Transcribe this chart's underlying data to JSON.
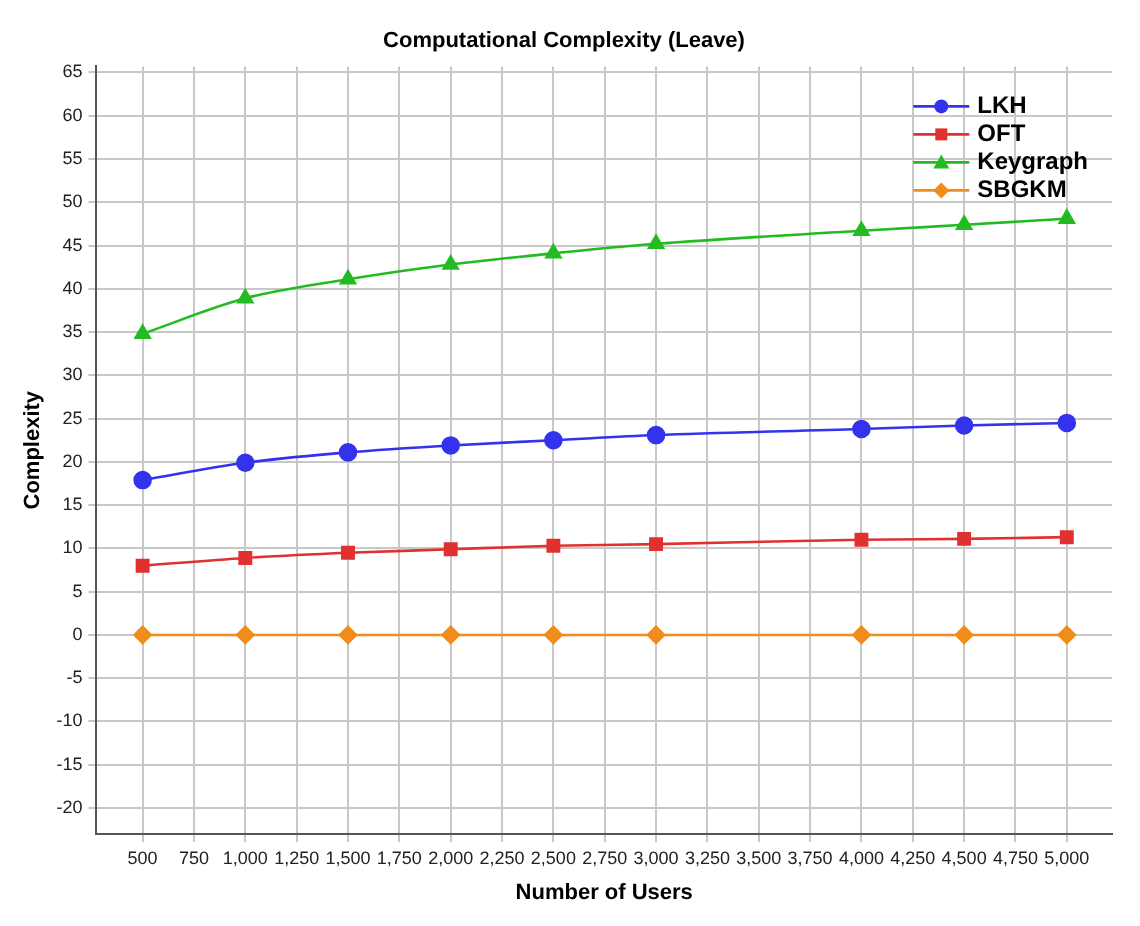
{
  "chart_data": {
    "type": "line",
    "title": "Computational Complexity (Leave)",
    "xlabel": "Number of Users",
    "ylabel": "Complexity",
    "x": [
      500,
      1000,
      1500,
      2000,
      2500,
      3000,
      4000,
      4500,
      5000
    ],
    "series": [
      {
        "name": "LKH",
        "color": "#3333ee",
        "marker": "circle",
        "values": [
          17.9,
          19.9,
          21.1,
          21.9,
          22.5,
          23.1,
          23.8,
          24.2,
          24.5
        ]
      },
      {
        "name": "OFT",
        "color": "#e03030",
        "marker": "square",
        "values": [
          8.0,
          8.9,
          9.5,
          9.9,
          10.3,
          10.5,
          11.0,
          11.1,
          11.3
        ]
      },
      {
        "name": "Keygraph",
        "color": "#22bb22",
        "marker": "triangle",
        "values": [
          34.8,
          38.9,
          41.1,
          42.8,
          44.1,
          45.2,
          46.7,
          47.4,
          48.1
        ]
      },
      {
        "name": "SBGKM",
        "color": "#f08c1a",
        "marker": "diamond",
        "values": [
          0,
          0,
          0,
          0,
          0,
          0,
          0,
          0,
          0
        ]
      }
    ],
    "xlim": [
      275,
      5220
    ],
    "ylim": [
      -23,
      65.7
    ],
    "xticks": [
      500,
      750,
      {
        "value": 1000,
        "label": "1,000"
      },
      {
        "value": 1250,
        "label": "1,250"
      },
      {
        "value": 1500,
        "label": "1,500"
      },
      {
        "value": 1750,
        "label": "1,750"
      },
      {
        "value": 2000,
        "label": "2,000"
      },
      {
        "value": 2250,
        "label": "2,250"
      },
      {
        "value": 2500,
        "label": "2,500"
      },
      {
        "value": 2750,
        "label": "2,750"
      },
      {
        "value": 3000,
        "label": "3,000"
      },
      {
        "value": 3250,
        "label": "3,250"
      },
      {
        "value": 3500,
        "label": "3,500"
      },
      {
        "value": 3750,
        "label": "3,750"
      },
      {
        "value": 4000,
        "label": "4,000"
      },
      {
        "value": 4250,
        "label": "4,250"
      },
      {
        "value": 4500,
        "label": "4,500"
      },
      {
        "value": 4750,
        "label": "4,750"
      },
      {
        "value": 5000,
        "label": "5,000"
      }
    ],
    "yticks": [
      -20,
      -15,
      -10,
      -5,
      0,
      5,
      10,
      15,
      20,
      25,
      30,
      35,
      40,
      45,
      50,
      55,
      60,
      65
    ],
    "grid": true,
    "legend": "top right",
    "line_style": "solid"
  }
}
